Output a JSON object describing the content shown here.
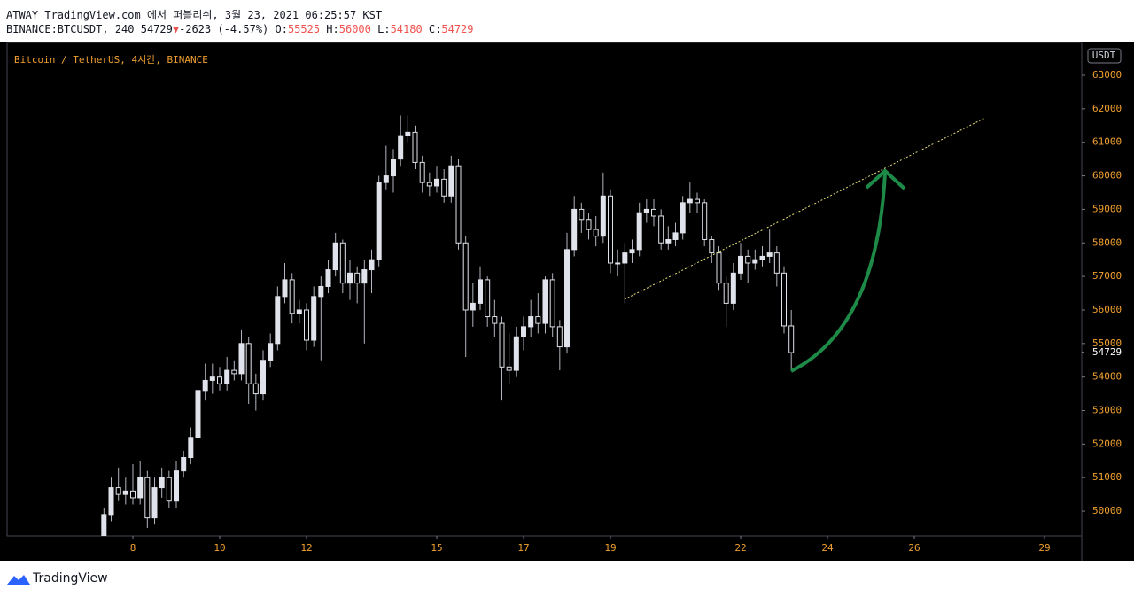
{
  "header": {
    "publisher": "ATWAY TradingView.com 에서 퍼블리쉬, 3월 23, 2021 06:25:57 KST",
    "symbol": "BINANCE:BTCUSDT, 240",
    "change": "-2623 (-4.57%)",
    "arrow": "▼",
    "o": "O:",
    "h": "H:",
    "l": "L:",
    "c": "C:"
  },
  "footer": {
    "brand": "TradingView"
  },
  "chart_data": {
    "type": "candlestick",
    "title": "Bitcoin / TetherUS, 4시간, BINANCE",
    "currency": "USDT",
    "up_color": "#e0e3eb",
    "down_color": "#000000",
    "wick_color": "#b2b5be",
    "xlim": [
      5.102,
      29.857
    ],
    "xticks": [
      8,
      10,
      12,
      15,
      17,
      19,
      22,
      24,
      26,
      29
    ],
    "ylim": [
      49262,
      63978
    ],
    "yticks": [
      50000,
      51000,
      52000,
      53000,
      54000,
      55000,
      56000,
      57000,
      58000,
      59000,
      60000,
      61000,
      62000,
      63000
    ],
    "x": [
      7.333,
      7.5,
      7.667,
      7.833,
      8,
      8.167,
      8.333,
      8.5,
      8.667,
      8.833,
      9,
      9.167,
      9.333,
      9.5,
      9.667,
      9.833,
      10,
      10.167,
      10.333,
      10.5,
      10.667,
      10.833,
      11,
      11.167,
      11.333,
      11.5,
      11.667,
      11.833,
      12,
      12.167,
      12.333,
      12.5,
      12.667,
      12.833,
      13,
      13.167,
      13.333,
      13.5,
      13.667,
      13.833,
      14,
      14.167,
      14.333,
      14.5,
      14.667,
      14.833,
      15,
      15.167,
      15.333,
      15.5,
      15.667,
      15.833,
      16,
      16.167,
      16.333,
      16.5,
      16.667,
      16.833,
      17,
      17.167,
      17.333,
      17.5,
      17.667,
      17.833,
      18,
      18.167,
      18.333,
      18.5,
      18.667,
      18.833,
      19,
      19.167,
      19.333,
      19.5,
      19.667,
      19.833,
      20,
      20.167,
      20.333,
      20.5,
      20.667,
      20.833,
      21,
      21.167,
      21.333,
      21.5,
      21.667,
      21.833,
      22,
      22.167,
      22.333,
      22.5,
      22.667,
      22.833,
      23,
      23.167
    ],
    "candles": [
      [
        49200,
        50100,
        49000,
        49900
      ],
      [
        49900,
        51000,
        49700,
        50700
      ],
      [
        50700,
        51300,
        50300,
        50500
      ],
      [
        50500,
        51000,
        50200,
        50600
      ],
      [
        50600,
        51400,
        50200,
        50400
      ],
      [
        50400,
        51500,
        50200,
        51000
      ],
      [
        51000,
        51200,
        49500,
        49800
      ],
      [
        49800,
        51000,
        49600,
        50700
      ],
      [
        50700,
        51300,
        50400,
        51000
      ],
      [
        51000,
        51200,
        50100,
        50300
      ],
      [
        50300,
        51500,
        50100,
        51200
      ],
      [
        51200,
        51800,
        51000,
        51600
      ],
      [
        51600,
        52500,
        51400,
        52200
      ],
      [
        52200,
        53900,
        52000,
        53600
      ],
      [
        53600,
        54400,
        53300,
        53900
      ],
      [
        53900,
        54400,
        53500,
        54000
      ],
      [
        54000,
        54300,
        53600,
        53800
      ],
      [
        53800,
        54600,
        53600,
        54200
      ],
      [
        54200,
        54500,
        53900,
        54100
      ],
      [
        54100,
        55400,
        53900,
        55000
      ],
      [
        55000,
        55200,
        53200,
        53800
      ],
      [
        53800,
        54100,
        53000,
        53500
      ],
      [
        53500,
        54800,
        53300,
        54500
      ],
      [
        54500,
        55300,
        54300,
        55000
      ],
      [
        55000,
        56700,
        54800,
        56400
      ],
      [
        56400,
        57400,
        56200,
        56900
      ],
      [
        56900,
        57100,
        55600,
        55900
      ],
      [
        55900,
        56300,
        55600,
        56000
      ],
      [
        56000,
        56200,
        54800,
        55100
      ],
      [
        55100,
        56700,
        54900,
        56400
      ],
      [
        56400,
        57000,
        54500,
        56700
      ],
      [
        56700,
        57500,
        56500,
        57200
      ],
      [
        57200,
        58300,
        57000,
        58000
      ],
      [
        58000,
        58100,
        56500,
        56800
      ],
      [
        56800,
        57500,
        56300,
        57100
      ],
      [
        57100,
        57300,
        56200,
        56800
      ],
      [
        56800,
        57500,
        55000,
        57200
      ],
      [
        57200,
        57800,
        56500,
        57500
      ],
      [
        57500,
        60000,
        57300,
        59800
      ],
      [
        59800,
        60900,
        59600,
        60000
      ],
      [
        60000,
        60800,
        59500,
        60500
      ],
      [
        60500,
        61800,
        60300,
        61200
      ],
      [
        61200,
        61800,
        61000,
        61300
      ],
      [
        61300,
        61500,
        60200,
        60400
      ],
      [
        60400,
        60600,
        59500,
        59800
      ],
      [
        59800,
        60100,
        59400,
        59700
      ],
      [
        59700,
        60300,
        59500,
        59900
      ],
      [
        59900,
        60200,
        59200,
        59400
      ],
      [
        59400,
        60600,
        59200,
        60300
      ],
      [
        60300,
        60500,
        57800,
        58000
      ],
      [
        58000,
        58200,
        54600,
        56000
      ],
      [
        56000,
        56800,
        55500,
        56200
      ],
      [
        56200,
        57300,
        56000,
        56900
      ],
      [
        56900,
        57000,
        55500,
        55800
      ],
      [
        55800,
        56300,
        55200,
        55600
      ],
      [
        55600,
        55800,
        53300,
        54300
      ],
      [
        54300,
        55300,
        53800,
        54200
      ],
      [
        54200,
        55500,
        54000,
        55200
      ],
      [
        55200,
        55800,
        54800,
        55500
      ],
      [
        55500,
        56300,
        55200,
        55800
      ],
      [
        55800,
        56500,
        55300,
        55600
      ],
      [
        55600,
        57000,
        55300,
        56900
      ],
      [
        56900,
        57100,
        55200,
        55500
      ],
      [
        55500,
        55700,
        54200,
        54900
      ],
      [
        54900,
        58300,
        54700,
        57800
      ],
      [
        57800,
        59400,
        57600,
        59000
      ],
      [
        59000,
        59200,
        58300,
        58700
      ],
      [
        58700,
        58900,
        58100,
        58400
      ],
      [
        58400,
        58800,
        57900,
        58200
      ],
      [
        58200,
        60100,
        58000,
        59400
      ],
      [
        59400,
        59600,
        57100,
        57400
      ],
      [
        57400,
        57800,
        57000,
        57400
      ],
      [
        57400,
        58000,
        56200,
        57700
      ],
      [
        57700,
        58100,
        57400,
        57800
      ],
      [
        57800,
        59200,
        57600,
        58900
      ],
      [
        58900,
        59300,
        58600,
        59000
      ],
      [
        59000,
        59300,
        58500,
        58800
      ],
      [
        58800,
        59000,
        57800,
        58000
      ],
      [
        58000,
        58500,
        57800,
        58100
      ],
      [
        58100,
        58600,
        57900,
        58300
      ],
      [
        58300,
        59400,
        58100,
        59200
      ],
      [
        59200,
        59800,
        58900,
        59300
      ],
      [
        59300,
        59500,
        58900,
        59200
      ],
      [
        59200,
        59300,
        57900,
        58100
      ],
      [
        58100,
        58200,
        57400,
        57700
      ],
      [
        57700,
        57900,
        56600,
        56800
      ],
      [
        56800,
        57000,
        55500,
        56200
      ],
      [
        56200,
        57400,
        56000,
        57100
      ],
      [
        57100,
        58000,
        56900,
        57600
      ],
      [
        57600,
        57800,
        56800,
        57400
      ],
      [
        57400,
        57800,
        57200,
        57500
      ],
      [
        57500,
        57900,
        57300,
        57600
      ],
      [
        57600,
        58400,
        57400,
        57700
      ],
      [
        57700,
        57900,
        56700,
        57100
      ],
      [
        57100,
        57300,
        55300,
        55525
      ],
      [
        55525,
        56000,
        54180,
        54729
      ]
    ]
  }
}
